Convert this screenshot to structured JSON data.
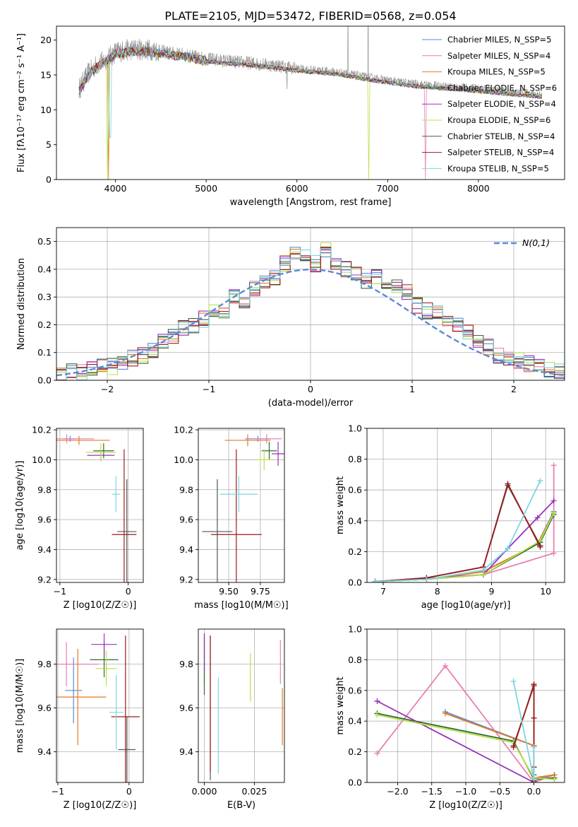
{
  "title": "PLATE=2105, MJD=53472, FIBERID=0568, z=0.054",
  "colors": {
    "chabrier_miles": "#5b8ad6",
    "salpeter_miles": "#e87fb4",
    "kroupa_miles": "#e07c26",
    "chabrier_elodie": "#2f6b2f",
    "salpeter_elodie": "#9932b8",
    "kroupa_elodie": "#b8e04a",
    "chabrier_stelib": "#555555",
    "salpeter_stelib": "#9e1a1a",
    "kroupa_stelib": "#7dd6e0",
    "data": "#9a9a9a",
    "normal": "#5b8ad6"
  },
  "chart_data": [
    {
      "id": "spectrum",
      "type": "line",
      "xlabel": "wavelength [Angstrom, rest frame]",
      "ylabel": "Flux [fλ10⁻¹⁷ erg cm⁻² s⁻¹ A⁻¹]",
      "xlim": [
        3350,
        8950
      ],
      "ylim": [
        0,
        22
      ],
      "xticks": [
        4000,
        5000,
        6000,
        7000,
        8000
      ],
      "yticks": [
        0,
        5,
        10,
        15,
        20
      ],
      "legend_position": "top-right",
      "legend": [
        "Chabrier MILES, N_SSP=5",
        "Salpeter MILES, N_SSP=4",
        "Kroupa MILES, N_SSP=5",
        "Chabrier ELODIE, N_SSP=6",
        "Salpeter ELODIE, N_SSP=4",
        "Kroupa ELODIE, N_SSP=6",
        "Chabrier STELIB, N_SSP=4",
        "Salpeter STELIB, N_SSP=4",
        "Kroupa STELIB, N_SSP=5"
      ],
      "continuum": [
        [
          3600,
          13.0
        ],
        [
          3700,
          15.2
        ],
        [
          3800,
          16.5
        ],
        [
          3900,
          17.2
        ],
        [
          4000,
          18.3
        ],
        [
          4200,
          18.7
        ],
        [
          4400,
          18.6
        ],
        [
          4600,
          18.2
        ],
        [
          4800,
          17.8
        ],
        [
          5000,
          17.3
        ],
        [
          5200,
          17.0
        ],
        [
          5500,
          16.7
        ],
        [
          5800,
          16.3
        ],
        [
          6000,
          15.9
        ],
        [
          6200,
          15.7
        ],
        [
          6500,
          15.3
        ],
        [
          6800,
          14.6
        ],
        [
          7000,
          14.2
        ],
        [
          7300,
          13.7
        ],
        [
          7500,
          13.5
        ],
        [
          7700,
          13.3
        ],
        [
          8000,
          13.0
        ],
        [
          8300,
          12.6
        ],
        [
          8500,
          12.4
        ],
        [
          8700,
          12.2
        ]
      ]
    },
    {
      "id": "residuals",
      "type": "histogram",
      "xlabel": "(data-model)/error",
      "ylabel": "Normed distribution",
      "xlim": [
        -2.5,
        2.5
      ],
      "ylim": [
        0,
        0.55
      ],
      "xticks": [
        -2,
        -1,
        0,
        1,
        2
      ],
      "yticks": [
        0.0,
        0.1,
        0.2,
        0.3,
        0.4,
        0.5
      ],
      "grid": true,
      "legend_position": "top-right",
      "legend": [
        "N(0,1)"
      ],
      "bin_edges": [
        -2.5,
        -2.4,
        -2.3,
        -2.2,
        -2.1,
        -2.0,
        -1.9,
        -1.8,
        -1.7,
        -1.6,
        -1.5,
        -1.4,
        -1.3,
        -1.2,
        -1.1,
        -1.0,
        -0.9,
        -0.8,
        -0.7,
        -0.6,
        -0.5,
        -0.4,
        -0.3,
        -0.2,
        -0.1,
        0.0,
        0.1,
        0.2,
        0.3,
        0.4,
        0.5,
        0.6,
        0.7,
        0.8,
        0.9,
        1.0,
        1.1,
        1.2,
        1.3,
        1.4,
        1.5,
        1.6,
        1.7,
        1.8,
        1.9,
        2.0,
        2.1,
        2.2,
        2.3,
        2.4,
        2.5
      ],
      "histogram_base": [
        0.02,
        0.03,
        0.03,
        0.04,
        0.05,
        0.05,
        0.06,
        0.08,
        0.09,
        0.11,
        0.14,
        0.16,
        0.19,
        0.2,
        0.22,
        0.25,
        0.24,
        0.3,
        0.29,
        0.33,
        0.35,
        0.37,
        0.42,
        0.45,
        0.44,
        0.42,
        0.47,
        0.41,
        0.4,
        0.38,
        0.36,
        0.37,
        0.33,
        0.34,
        0.32,
        0.27,
        0.25,
        0.24,
        0.22,
        0.2,
        0.17,
        0.14,
        0.12,
        0.09,
        0.08,
        0.07,
        0.06,
        0.05,
        0.04,
        0.03
      ]
    },
    {
      "id": "age_vs_Z",
      "type": "errorbar",
      "xlabel": "Z [log10(Z/Z☉)]",
      "ylabel": "age  [log10(age/yr)]",
      "xlim": [
        -1.05,
        0.22
      ],
      "ylim": [
        9.18,
        10.21
      ],
      "xticks": [
        -1,
        0
      ],
      "yticks": [
        9.2,
        9.4,
        9.6,
        9.8,
        10.0,
        10.2
      ],
      "grid": true,
      "points": [
        {
          "series": "chabrier_miles",
          "x": -0.85,
          "xerr": 0.1,
          "y": 10.14,
          "yerr": 0.02
        },
        {
          "series": "salpeter_miles",
          "x": -0.9,
          "xerr": 0.4,
          "y": 10.14,
          "yerr": 0.03
        },
        {
          "series": "kroupa_miles",
          "x": -0.72,
          "xerr": 0.45,
          "y": 10.13,
          "yerr": 0.03
        },
        {
          "series": "chabrier_elodie",
          "x": -0.36,
          "xerr": 0.15,
          "y": 10.06,
          "yerr": 0.05
        },
        {
          "series": "salpeter_elodie",
          "x": -0.4,
          "xerr": 0.2,
          "y": 10.03,
          "yerr": 0.04
        },
        {
          "series": "kroupa_elodie",
          "x": -0.4,
          "xerr": 0.22,
          "y": 10.05,
          "yerr": 0.06
        },
        {
          "series": "chabrier_stelib",
          "x": -0.02,
          "xerr": 0.14,
          "y": 9.52,
          "yerr": 0.35
        },
        {
          "series": "salpeter_stelib",
          "x": -0.06,
          "xerr": 0.18,
          "y": 9.5,
          "yerr": 0.57
        },
        {
          "series": "kroupa_stelib",
          "x": -0.18,
          "xerr": 0.06,
          "y": 9.77,
          "yerr": 0.12
        }
      ]
    },
    {
      "id": "age_vs_mass",
      "type": "errorbar",
      "xlabel": "mass [log10(M/M☉)]",
      "ylabel": "",
      "xlim": [
        9.26,
        9.94
      ],
      "ylim": [
        9.18,
        10.21
      ],
      "xticks": [
        9.5,
        9.75
      ],
      "yticks": [
        9.2,
        9.4,
        9.6,
        9.8,
        10.0,
        10.2
      ],
      "grid": true,
      "points": [
        {
          "series": "chabrier_miles",
          "x": 9.73,
          "xerr": 0.1,
          "y": 10.14,
          "yerr": 0.02
        },
        {
          "series": "salpeter_miles",
          "x": 9.8,
          "xerr": 0.12,
          "y": 10.14,
          "yerr": 0.03
        },
        {
          "series": "kroupa_miles",
          "x": 9.65,
          "xerr": 0.18,
          "y": 10.13,
          "yerr": 0.04
        },
        {
          "series": "chabrier_elodie",
          "x": 9.82,
          "xerr": 0.06,
          "y": 10.06,
          "yerr": 0.06
        },
        {
          "series": "salpeter_elodie",
          "x": 9.89,
          "xerr": 0.05,
          "y": 10.04,
          "yerr": 0.08
        },
        {
          "series": "kroupa_elodie",
          "x": 9.78,
          "xerr": 0.07,
          "y": 10.0,
          "yerr": 0.07
        },
        {
          "series": "chabrier_stelib",
          "x": 9.41,
          "xerr": 0.12,
          "y": 9.52,
          "yerr": 0.35
        },
        {
          "series": "salpeter_stelib",
          "x": 9.56,
          "xerr": 0.2,
          "y": 9.5,
          "yerr": 0.57
        },
        {
          "series": "kroupa_stelib",
          "x": 9.58,
          "xerr": 0.15,
          "y": 9.77,
          "yerr": 0.12
        }
      ]
    },
    {
      "id": "weight_vs_age",
      "type": "line",
      "xlabel": "age  [log10(age/yr)]",
      "ylabel": "mass weight",
      "xlim": [
        6.7,
        10.35
      ],
      "ylim": [
        0,
        1
      ],
      "xticks": [
        7,
        8,
        9,
        10
      ],
      "yticks": [
        0.0,
        0.2,
        0.4,
        0.6,
        0.8,
        1.0
      ],
      "grid": true,
      "series": [
        {
          "key": "chabrier_miles",
          "x": [
            6.85,
            7.8,
            8.85,
            9.85,
            10.15
          ],
          "y": [
            0.005,
            0.02,
            0.07,
            0.25,
            0.46
          ]
        },
        {
          "key": "salpeter_miles",
          "x": [
            6.85,
            8.85,
            10.15,
            10.15
          ],
          "y": [
            0.005,
            0.05,
            0.19,
            0.76
          ]
        },
        {
          "key": "kroupa_miles",
          "x": [
            6.85,
            7.8,
            8.85,
            9.85,
            10.15
          ],
          "y": [
            0.005,
            0.02,
            0.07,
            0.25,
            0.45
          ]
        },
        {
          "key": "chabrier_elodie",
          "x": [
            6.85,
            7.8,
            8.85,
            9.9,
            10.15
          ],
          "y": [
            0.005,
            0.02,
            0.05,
            0.26,
            0.44
          ]
        },
        {
          "key": "salpeter_elodie",
          "x": [
            6.85,
            8.85,
            9.3,
            9.85,
            10.15
          ],
          "y": [
            0.005,
            0.05,
            0.22,
            0.42,
            0.53
          ]
        },
        {
          "key": "kroupa_elodie",
          "x": [
            6.85,
            7.8,
            8.85,
            9.9,
            10.15
          ],
          "y": [
            0.005,
            0.02,
            0.05,
            0.27,
            0.45
          ]
        },
        {
          "key": "chabrier_stelib",
          "x": [
            6.85,
            7.8,
            8.85,
            9.3,
            9.9
          ],
          "y": [
            0.005,
            0.03,
            0.1,
            0.63,
            0.24
          ]
        },
        {
          "key": "salpeter_stelib",
          "x": [
            6.85,
            7.8,
            8.85,
            9.3,
            9.9
          ],
          "y": [
            0.005,
            0.03,
            0.1,
            0.64,
            0.23
          ]
        },
        {
          "key": "kroupa_stelib",
          "x": [
            6.85,
            7.8,
            8.85,
            9.3,
            9.9
          ],
          "y": [
            0.005,
            0.02,
            0.08,
            0.22,
            0.66
          ]
        }
      ]
    },
    {
      "id": "mass_vs_Z",
      "type": "errorbar",
      "xlabel": "Z [log10(Z/Z☉)]",
      "ylabel": "mass [log10(M/M☉)]",
      "xlim": [
        -1.02,
        0.2
      ],
      "ylim": [
        9.26,
        9.96
      ],
      "xticks": [
        -1,
        0
      ],
      "yticks": [
        9.4,
        9.6,
        9.8
      ],
      "grid": true,
      "points": [
        {
          "series": "chabrier_miles",
          "x": -0.78,
          "xerr": 0.12,
          "y": 9.68,
          "yerr": 0.15
        },
        {
          "series": "salpeter_miles",
          "x": -0.88,
          "xerr": 0.45,
          "y": 9.8,
          "yerr": 0.1
        },
        {
          "series": "kroupa_miles",
          "x": -0.72,
          "xerr": 0.4,
          "y": 9.65,
          "yerr": 0.22
        },
        {
          "series": "chabrier_elodie",
          "x": -0.35,
          "xerr": 0.2,
          "y": 9.82,
          "yerr": 0.08
        },
        {
          "series": "salpeter_elodie",
          "x": -0.35,
          "xerr": 0.18,
          "y": 9.89,
          "yerr": 0.05
        },
        {
          "series": "kroupa_elodie",
          "x": -0.32,
          "xerr": 0.15,
          "y": 9.78,
          "yerr": 0.08
        },
        {
          "series": "chabrier_stelib",
          "x": -0.03,
          "xerr": 0.12,
          "y": 9.41,
          "yerr": 0.15
        },
        {
          "series": "salpeter_stelib",
          "x": -0.05,
          "xerr": 0.2,
          "y": 9.56,
          "yerr": 0.37
        },
        {
          "series": "kroupa_stelib",
          "x": -0.18,
          "xerr": 0.1,
          "y": 9.58,
          "yerr": 0.17
        }
      ]
    },
    {
      "id": "mass_vs_EBV",
      "type": "errorbar",
      "xlabel": "E(B-V)",
      "ylabel": "",
      "xlim": [
        -0.003,
        0.04
      ],
      "ylim": [
        9.26,
        9.96
      ],
      "xticks": [
        0.0,
        0.025
      ],
      "yticks": [
        9.4,
        9.6,
        9.8
      ],
      "grid": true,
      "points": [
        {
          "series": "chabrier_miles",
          "x": 0.0,
          "y": 9.82,
          "yerr": 0.1
        },
        {
          "series": "salpeter_miles",
          "x": 0.038,
          "y": 9.81,
          "yerr": 0.1
        },
        {
          "series": "kroupa_miles",
          "x": 0.039,
          "y": 9.56,
          "yerr": 0.13
        },
        {
          "series": "chabrier_elodie",
          "x": 0.0,
          "y": 9.8,
          "yerr": 0.14
        },
        {
          "series": "salpeter_elodie",
          "x": 0.0,
          "y": 9.85,
          "yerr": 0.09
        },
        {
          "series": "kroupa_elodie",
          "x": 0.023,
          "y": 9.74,
          "yerr": 0.11
        },
        {
          "series": "chabrier_stelib",
          "x": 0.003,
          "y": 9.6,
          "yerr": 0.33
        },
        {
          "series": "salpeter_stelib",
          "x": 0.003,
          "y": 9.62,
          "yerr": 0.31
        },
        {
          "series": "kroupa_stelib",
          "x": 0.007,
          "y": 9.52,
          "yerr": 0.22
        }
      ]
    },
    {
      "id": "weight_vs_Z",
      "type": "line",
      "xlabel": "Z [log10(Z/Z☉)]",
      "ylabel": "mass weight",
      "xlim": [
        -2.45,
        0.45
      ],
      "ylim": [
        0,
        1
      ],
      "xticks": [
        -2.0,
        -1.5,
        -1.0,
        -0.5,
        0.0
      ],
      "yticks": [
        0.0,
        0.2,
        0.4,
        0.6,
        0.8,
        1.0
      ],
      "grid": true,
      "series": [
        {
          "key": "chabrier_miles",
          "x": [
            -1.3,
            0.0,
            0.0,
            0.3
          ],
          "y": [
            0.46,
            0.24,
            0.02,
            0.05
          ]
        },
        {
          "key": "salpeter_miles",
          "x": [
            -2.3,
            -1.3,
            0.0,
            0.3
          ],
          "y": [
            0.19,
            0.76,
            0.0,
            0.05
          ]
        },
        {
          "key": "kroupa_miles",
          "x": [
            -1.3,
            0.0,
            0.0,
            0.3
          ],
          "y": [
            0.45,
            0.24,
            0.03,
            0.05
          ]
        },
        {
          "key": "chabrier_elodie",
          "x": [
            -2.3,
            -0.3,
            0.0,
            0.3
          ],
          "y": [
            0.45,
            0.27,
            0.02,
            0.03
          ]
        },
        {
          "key": "salpeter_elodie",
          "x": [
            -2.3,
            0.0,
            0.0,
            0.0
          ],
          "y": [
            0.53,
            0.0,
            0.05,
            0.02
          ]
        },
        {
          "key": "kroupa_elodie",
          "x": [
            -2.3,
            -0.3,
            0.0,
            0.3
          ],
          "y": [
            0.44,
            0.26,
            0.03,
            0.02
          ]
        },
        {
          "key": "chabrier_stelib",
          "x": [
            -0.3,
            0.0,
            0.0,
            0.0
          ],
          "y": [
            0.24,
            0.63,
            0.1,
            0.01
          ]
        },
        {
          "key": "salpeter_stelib",
          "x": [
            -0.3,
            0.0,
            0.0,
            0.0,
            0.0
          ],
          "y": [
            0.23,
            0.64,
            0.42,
            0.1,
            0.01
          ]
        },
        {
          "key": "kroupa_stelib",
          "x": [
            -0.3,
            0.0,
            0.0
          ],
          "y": [
            0.66,
            0.02,
            0.23
          ]
        }
      ]
    }
  ]
}
